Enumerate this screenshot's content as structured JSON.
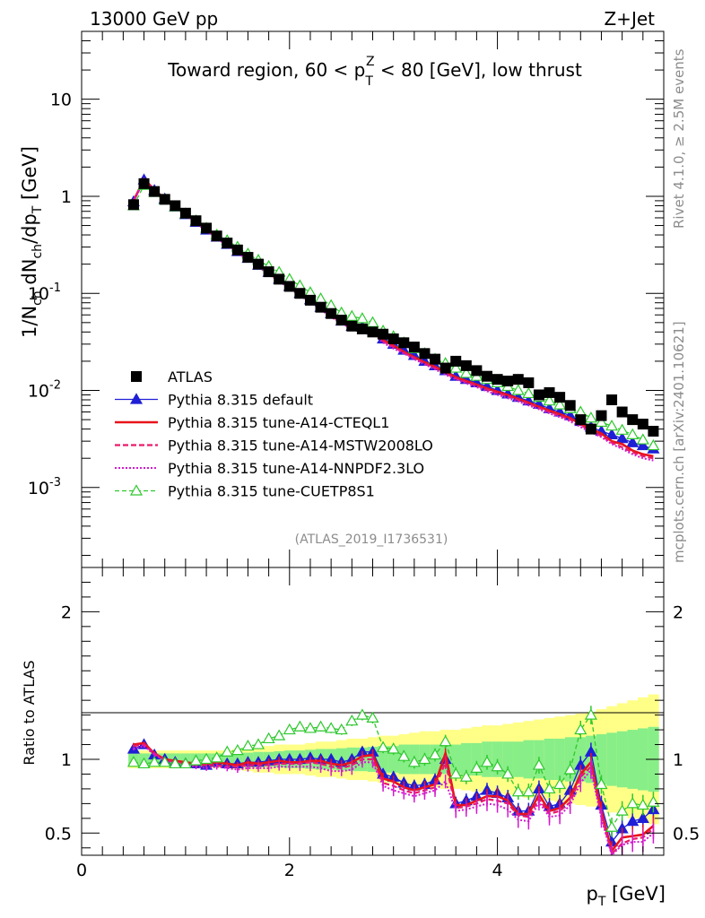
{
  "header": {
    "energy": "13000 GeV pp",
    "process": "Z+Jet"
  },
  "title": "Toward region, 60 < p_T^Z < 80 [GeV], low thrust",
  "side_labels": {
    "rivet": "Rivet 4.1.0, ≥ 2.5M events",
    "mcplots": "mcplots.cern.ch [arXiv:2401.10621]"
  },
  "analysis_id": "(ATLAS_2019_I1736531)",
  "legend": [
    {
      "name": "ATLAS"
    },
    {
      "name": "Pythia 8.315 default"
    },
    {
      "name": "Pythia 8.315 tune-A14-CTEQL1"
    },
    {
      "name": "Pythia 8.315 tune-A14-MSTW2008LO"
    },
    {
      "name": "Pythia 8.315 tune-A14-NNPDF2.3LO"
    },
    {
      "name": "Pythia 8.315 tune-CUETP8S1"
    }
  ],
  "chart_data": [
    {
      "type": "scatter",
      "panel": "main",
      "title": "Toward region, 60 < p_T^Z < 80 [GeV], low thrust",
      "ylabel": "1/N_ch dN_ch/dp_T [GeV]",
      "yscale": "log",
      "xlim": [
        0,
        5.6
      ],
      "ylim": [
        0.00015,
        50
      ],
      "yticks": [
        {
          "value": 0.001,
          "label": "10^-3"
        },
        {
          "value": 0.01,
          "label": "10^-2"
        },
        {
          "value": 0.1,
          "label": "10^-1"
        },
        {
          "value": 1,
          "label": "1"
        },
        {
          "value": 10,
          "label": "10"
        }
      ],
      "x": [
        0.5,
        0.6,
        0.7,
        0.8,
        0.9,
        1.0,
        1.1,
        1.2,
        1.3,
        1.4,
        1.5,
        1.6,
        1.7,
        1.8,
        1.9,
        2.0,
        2.1,
        2.2,
        2.3,
        2.4,
        2.5,
        2.6,
        2.7,
        2.8,
        2.9,
        3.0,
        3.1,
        3.2,
        3.3,
        3.4,
        3.5,
        3.6,
        3.7,
        3.8,
        3.9,
        4.0,
        4.1,
        4.2,
        4.3,
        4.4,
        4.5,
        4.6,
        4.7,
        4.8,
        4.9,
        5.0,
        5.1,
        5.2,
        5.3,
        5.4,
        5.5
      ],
      "series": [
        {
          "name": "ATLAS",
          "values": [
            0.82,
            1.35,
            1.12,
            0.93,
            0.8,
            0.67,
            0.56,
            0.47,
            0.39,
            0.33,
            0.28,
            0.235,
            0.2,
            0.167,
            0.14,
            0.118,
            0.1,
            0.085,
            0.072,
            0.062,
            0.053,
            0.046,
            0.043,
            0.04,
            0.038,
            0.034,
            0.031,
            0.028,
            0.024,
            0.021,
            0.017,
            0.02,
            0.018,
            0.016,
            0.014,
            0.013,
            0.0125,
            0.013,
            0.012,
            0.009,
            0.0095,
            0.0085,
            0.007,
            0.005,
            0.004,
            0.0055,
            0.008,
            0.006,
            0.005,
            0.0045,
            0.0038
          ]
        },
        {
          "name": "Pythia 8.315 default",
          "values": [
            0.88,
            1.48,
            1.15,
            0.94,
            0.78,
            0.65,
            0.54,
            0.45,
            0.38,
            0.32,
            0.27,
            0.23,
            0.195,
            0.165,
            0.14,
            0.118,
            0.1,
            0.086,
            0.072,
            0.062,
            0.052,
            0.046,
            0.045,
            0.042,
            0.034,
            0.03,
            0.026,
            0.023,
            0.02,
            0.018,
            0.016,
            0.014,
            0.013,
            0.012,
            0.011,
            0.01,
            0.0092,
            0.0085,
            0.0078,
            0.0072,
            0.0065,
            0.006,
            0.0055,
            0.0048,
            0.0042,
            0.0038,
            0.0035,
            0.0032,
            0.0029,
            0.0027,
            0.0025
          ]
        },
        {
          "name": "Pythia 8.315 tune-A14-CTEQL1",
          "values": [
            0.9,
            1.5,
            1.17,
            0.94,
            0.79,
            0.66,
            0.545,
            0.455,
            0.38,
            0.32,
            0.27,
            0.23,
            0.195,
            0.163,
            0.138,
            0.116,
            0.098,
            0.084,
            0.071,
            0.06,
            0.051,
            0.045,
            0.044,
            0.041,
            0.033,
            0.029,
            0.025,
            0.022,
            0.0195,
            0.0175,
            0.0155,
            0.0137,
            0.0125,
            0.0115,
            0.0105,
            0.0097,
            0.009,
            0.0082,
            0.0075,
            0.0068,
            0.0062,
            0.0057,
            0.0052,
            0.0045,
            0.004,
            0.0036,
            0.003,
            0.0028,
            0.0024,
            0.0022,
            0.0021
          ]
        },
        {
          "name": "Pythia 8.315 tune-A14-MSTW2008LO",
          "values": [
            0.89,
            1.49,
            1.16,
            0.93,
            0.78,
            0.65,
            0.54,
            0.45,
            0.375,
            0.315,
            0.265,
            0.226,
            0.192,
            0.16,
            0.136,
            0.114,
            0.097,
            0.083,
            0.07,
            0.059,
            0.05,
            0.044,
            0.043,
            0.04,
            0.032,
            0.028,
            0.0245,
            0.0215,
            0.019,
            0.017,
            0.015,
            0.0133,
            0.0122,
            0.0112,
            0.0102,
            0.0094,
            0.0087,
            0.008,
            0.0073,
            0.0066,
            0.006,
            0.0055,
            0.005,
            0.0044,
            0.0038,
            0.0034,
            0.0029,
            0.0026,
            0.0023,
            0.0021,
            0.002
          ]
        },
        {
          "name": "Pythia 8.315 tune-A14-NNPDF2.3LO",
          "values": [
            0.88,
            1.47,
            1.15,
            0.92,
            0.77,
            0.64,
            0.53,
            0.44,
            0.37,
            0.31,
            0.26,
            0.222,
            0.188,
            0.157,
            0.133,
            0.112,
            0.095,
            0.081,
            0.068,
            0.057,
            0.049,
            0.043,
            0.042,
            0.039,
            0.031,
            0.027,
            0.024,
            0.021,
            0.0185,
            0.0165,
            0.0145,
            0.013,
            0.0118,
            0.0108,
            0.0098,
            0.009,
            0.0083,
            0.0077,
            0.007,
            0.0064,
            0.0058,
            0.0053,
            0.0048,
            0.0042,
            0.0037,
            0.0033,
            0.0028,
            0.0025,
            0.0022,
            0.002,
            0.0019
          ]
        },
        {
          "name": "Pythia 8.315 tune-CUETP8S1",
          "values": [
            0.8,
            1.3,
            1.1,
            0.92,
            0.78,
            0.66,
            0.56,
            0.47,
            0.4,
            0.35,
            0.3,
            0.255,
            0.22,
            0.19,
            0.165,
            0.14,
            0.12,
            0.102,
            0.088,
            0.075,
            0.063,
            0.058,
            0.055,
            0.05,
            0.041,
            0.036,
            0.031,
            0.027,
            0.024,
            0.021,
            0.019,
            0.017,
            0.015,
            0.014,
            0.013,
            0.012,
            0.011,
            0.01,
            0.0093,
            0.0085,
            0.0078,
            0.0071,
            0.0065,
            0.006,
            0.0052,
            0.0047,
            0.0043,
            0.0039,
            0.0035,
            0.0031,
            0.0027
          ]
        }
      ]
    },
    {
      "type": "scatter",
      "panel": "ratio",
      "ylabel": "Ratio to ATLAS",
      "xlabel": "p_T [GeV]",
      "xlim": [
        0,
        5.6
      ],
      "ylim": [
        0.35,
        2.3
      ],
      "yticks": [
        {
          "value": 0.5,
          "label": "0.5"
        },
        {
          "value": 1,
          "label": "1"
        },
        {
          "value": 2,
          "label": "2"
        }
      ],
      "xticks": [
        {
          "value": 0,
          "label": "0"
        },
        {
          "value": 2,
          "label": "2"
        },
        {
          "value": 4,
          "label": "4"
        }
      ],
      "x": [
        0.5,
        0.6,
        0.7,
        0.8,
        0.9,
        1.0,
        1.1,
        1.2,
        1.3,
        1.4,
        1.5,
        1.6,
        1.7,
        1.8,
        1.9,
        2.0,
        2.1,
        2.2,
        2.3,
        2.4,
        2.5,
        2.6,
        2.7,
        2.8,
        2.9,
        3.0,
        3.1,
        3.2,
        3.3,
        3.4,
        3.5,
        3.6,
        3.7,
        3.8,
        3.9,
        4.0,
        4.1,
        4.2,
        4.3,
        4.4,
        4.5,
        4.6,
        4.7,
        4.8,
        4.9,
        5.0,
        5.1,
        5.2,
        5.3,
        5.4,
        5.5
      ],
      "bands": {
        "green_half_width": [
          0.04,
          0.04,
          0.04,
          0.04,
          0.04,
          0.04,
          0.04,
          0.04,
          0.04,
          0.04,
          0.04,
          0.045,
          0.05,
          0.05,
          0.055,
          0.06,
          0.06,
          0.065,
          0.07,
          0.07,
          0.075,
          0.08,
          0.08,
          0.085,
          0.09,
          0.09,
          0.1,
          0.1,
          0.1,
          0.1,
          0.1,
          0.1,
          0.11,
          0.11,
          0.12,
          0.12,
          0.12,
          0.12,
          0.13,
          0.13,
          0.14,
          0.14,
          0.15,
          0.15,
          0.16,
          0.17,
          0.18,
          0.19,
          0.2,
          0.21,
          0.22
        ],
        "yellow_half_width": [
          0.06,
          0.06,
          0.06,
          0.06,
          0.06,
          0.06,
          0.06,
          0.06,
          0.06,
          0.06,
          0.07,
          0.08,
          0.09,
          0.09,
          0.1,
          0.1,
          0.1,
          0.11,
          0.12,
          0.12,
          0.13,
          0.14,
          0.14,
          0.15,
          0.16,
          0.16,
          0.17,
          0.18,
          0.19,
          0.19,
          0.2,
          0.2,
          0.21,
          0.22,
          0.23,
          0.23,
          0.24,
          0.25,
          0.26,
          0.27,
          0.28,
          0.29,
          0.3,
          0.31,
          0.32,
          0.34,
          0.36,
          0.38,
          0.4,
          0.42,
          0.44
        ]
      },
      "series": [
        {
          "name": "Pythia 8.315 default",
          "values": [
            1.07,
            1.1,
            1.03,
            1.0,
            0.98,
            0.97,
            0.97,
            0.96,
            0.98,
            0.97,
            0.97,
            0.98,
            0.98,
            0.99,
            1.0,
            1.0,
            1.0,
            1.01,
            1.0,
            1.0,
            0.98,
            1.0,
            1.05,
            1.05,
            0.9,
            0.88,
            0.84,
            0.82,
            0.83,
            0.86,
            1.0,
            0.7,
            0.72,
            0.75,
            0.79,
            0.77,
            0.74,
            0.65,
            0.65,
            0.8,
            0.68,
            0.7,
            0.79,
            0.96,
            1.05,
            0.69,
            0.44,
            0.53,
            0.58,
            0.6,
            0.66
          ]
        },
        {
          "name": "Pythia 8.315 tune-A14-CTEQL1",
          "values": [
            1.1,
            1.11,
            1.04,
            1.0,
            0.99,
            0.98,
            0.97,
            0.97,
            0.98,
            0.97,
            0.96,
            0.98,
            0.97,
            0.98,
            0.99,
            0.98,
            0.98,
            0.99,
            0.99,
            0.97,
            0.96,
            0.98,
            1.02,
            1.03,
            0.87,
            0.85,
            0.81,
            0.79,
            0.81,
            0.83,
            1.04,
            0.69,
            0.69,
            0.72,
            0.75,
            0.75,
            0.72,
            0.63,
            0.63,
            0.76,
            0.65,
            0.67,
            0.74,
            0.9,
            0.98,
            0.65,
            0.38,
            0.47,
            0.48,
            0.49,
            0.55
          ]
        },
        {
          "name": "Pythia 8.315 tune-A14-MSTW2008LO",
          "values": [
            1.09,
            1.1,
            1.04,
            1.0,
            0.98,
            0.97,
            0.96,
            0.96,
            0.96,
            0.95,
            0.95,
            0.96,
            0.96,
            0.96,
            0.97,
            0.97,
            0.97,
            0.98,
            0.97,
            0.95,
            0.94,
            0.96,
            1.0,
            1.0,
            0.84,
            0.82,
            0.79,
            0.77,
            0.79,
            0.81,
            0.98,
            0.67,
            0.68,
            0.7,
            0.73,
            0.72,
            0.7,
            0.62,
            0.61,
            0.73,
            0.63,
            0.65,
            0.71,
            0.88,
            0.95,
            0.62,
            0.36,
            0.43,
            0.46,
            0.47,
            0.53
          ]
        },
        {
          "name": "Pythia 8.315 tune-A14-NNPDF2.3LO",
          "values": [
            1.07,
            1.09,
            1.03,
            0.99,
            0.96,
            0.96,
            0.95,
            0.94,
            0.95,
            0.94,
            0.93,
            0.94,
            0.94,
            0.94,
            0.95,
            0.95,
            0.95,
            0.95,
            0.94,
            0.92,
            0.92,
            0.93,
            0.98,
            0.98,
            0.82,
            0.79,
            0.77,
            0.75,
            0.77,
            0.79,
            0.85,
            0.65,
            0.66,
            0.68,
            0.7,
            0.69,
            0.66,
            0.59,
            0.58,
            0.71,
            0.61,
            0.62,
            0.69,
            0.84,
            0.93,
            0.6,
            0.35,
            0.42,
            0.44,
            0.44,
            0.5
          ]
        },
        {
          "name": "Pythia 8.315 tune-CUETP8S1",
          "values": [
            0.98,
            0.97,
            0.98,
            0.98,
            0.97,
            0.97,
            0.99,
            1.0,
            1.01,
            1.05,
            1.06,
            1.09,
            1.1,
            1.14,
            1.16,
            1.2,
            1.22,
            1.21,
            1.22,
            1.21,
            1.2,
            1.26,
            1.3,
            1.28,
            1.08,
            1.07,
            1.02,
            0.98,
            1.0,
            1.03,
            1.12,
            0.9,
            0.88,
            0.94,
            0.98,
            0.95,
            0.9,
            0.78,
            0.78,
            0.96,
            0.8,
            0.83,
            0.93,
            1.2,
            1.3,
            0.83,
            0.54,
            0.65,
            0.7,
            0.69,
            0.71
          ]
        }
      ]
    }
  ]
}
